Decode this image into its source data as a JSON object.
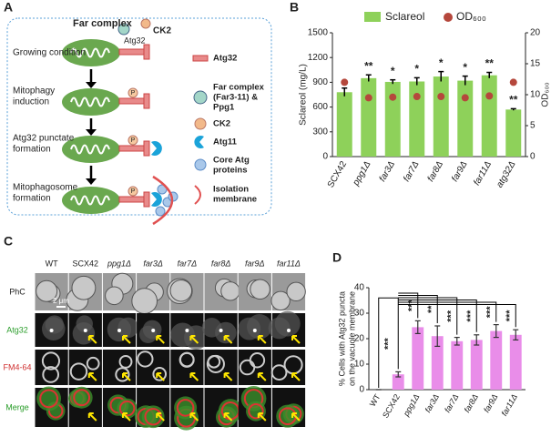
{
  "panel_labels": [
    "A",
    "B",
    "C",
    "D"
  ],
  "diagram": {
    "far_complex": "Far complex",
    "ck2": "CK2",
    "atg32": "Atg32",
    "p": "P",
    "stages": [
      [
        "Growing condition"
      ],
      [
        "Mitophagy",
        "induction"
      ],
      [
        "Atg32 punctate",
        "formation"
      ],
      [
        "Mitophagosome",
        "formation"
      ]
    ],
    "legend": [
      [
        "Atg32"
      ],
      [
        "Far complex",
        "(Far3-11) &",
        "Ppg1"
      ],
      [
        "CK2"
      ],
      [
        "Atg11"
      ],
      [
        "Core Atg",
        "proteins"
      ],
      [
        "Isolation",
        "membrane"
      ]
    ]
  },
  "micrographs": {
    "columns": [
      "WT",
      "SCX42",
      "ppg1Δ",
      "far3Δ",
      "far7Δ",
      "far8Δ",
      "far9Δ",
      "far11Δ"
    ],
    "rows": [
      "PhC",
      "Atg32",
      "FM4-64",
      "Merge"
    ],
    "scale_bar": "2 μm"
  },
  "chart_data": [
    {
      "type": "bar",
      "categories": [
        "SCX42",
        "ppg1Δ",
        "far3Δ",
        "far7Δ",
        "far8Δ",
        "far9Δ",
        "far11Δ",
        "atg32Δ"
      ],
      "series": [
        {
          "name": "Sclareol",
          "color": "#8ed15a",
          "values": [
            780,
            950,
            905,
            910,
            970,
            920,
            985,
            570
          ],
          "errors": [
            50,
            40,
            25,
            45,
            60,
            55,
            35,
            10
          ]
        },
        {
          "name": "OD₆₀₀",
          "type": "scatter",
          "axis": "y2",
          "color": "#b5473c",
          "values": [
            12,
            9.5,
            9.6,
            9.7,
            9.7,
            9.5,
            9.8,
            12
          ]
        }
      ],
      "annotations": [
        null,
        "**",
        "*",
        "*",
        "*",
        "*",
        "**",
        "**"
      ],
      "ylabel": "Sclareol (mg/L)",
      "y2label": "OD₆₀₀",
      "ylim": [
        0,
        1500
      ],
      "yticks": [
        0,
        300,
        600,
        900,
        1200,
        1500
      ],
      "y2lim": [
        0,
        20
      ],
      "y2ticks": [
        0,
        5,
        10,
        15,
        20
      ]
    },
    {
      "type": "bar",
      "categories": [
        "WT",
        "SCX42",
        "ppg1Δ",
        "far3Δ",
        "far7Δ",
        "far8Δ",
        "far9Δ",
        "far11Δ"
      ],
      "values": [
        0,
        6,
        24.5,
        21,
        19,
        19.5,
        23,
        21.5
      ],
      "errors": [
        0,
        1,
        2.5,
        4,
        1.5,
        2,
        2.5,
        2
      ],
      "color": "#e98de9",
      "annotations": [
        null,
        "***",
        "***",
        "**",
        "***",
        "***",
        "***",
        "***"
      ],
      "ylabel": [
        "% Cells with Atg32 puncta",
        "on the vacuole membrane"
      ],
      "ylim": [
        0,
        40
      ],
      "yticks": [
        0,
        10,
        20,
        30,
        40
      ]
    }
  ]
}
